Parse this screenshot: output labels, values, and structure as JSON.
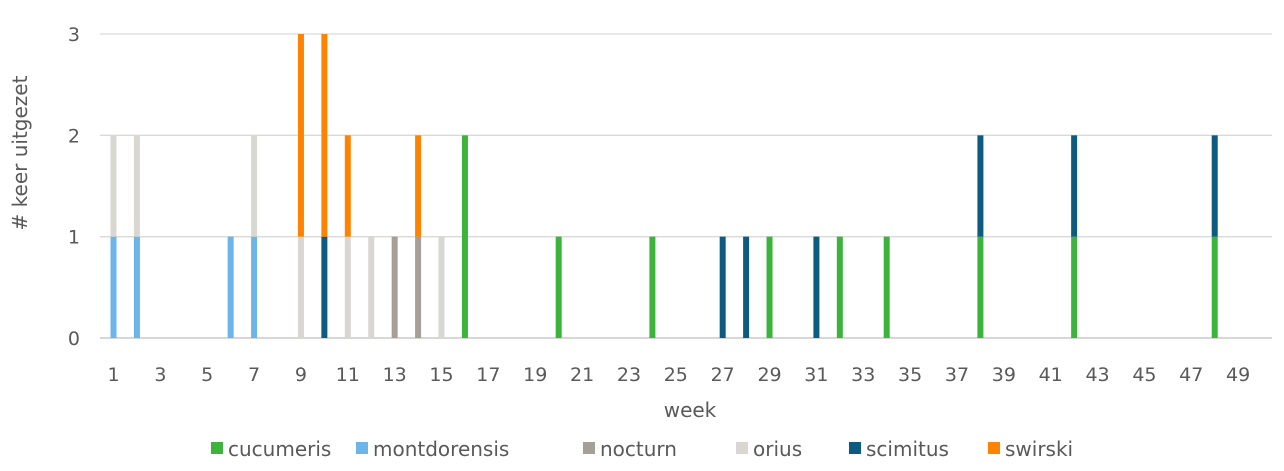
{
  "chart_data": {
    "type": "bar",
    "stacked": true,
    "title": "",
    "xlabel": "week",
    "ylabel": "# keer uitgezet",
    "ylim": [
      0,
      3
    ],
    "yticks": [
      0,
      1,
      2,
      3
    ],
    "grid": true,
    "legend_position": "bottom",
    "xticks": [
      1,
      3,
      5,
      7,
      9,
      11,
      13,
      15,
      17,
      19,
      21,
      23,
      25,
      27,
      29,
      31,
      33,
      35,
      37,
      39,
      41,
      43,
      45,
      47,
      49
    ],
    "x_range": [
      1,
      49
    ],
    "series": [
      {
        "name": "cucumeris",
        "color": "#3cb43c",
        "points": [
          {
            "week": 16,
            "value": 2
          },
          {
            "week": 20,
            "value": 1
          },
          {
            "week": 24,
            "value": 1
          },
          {
            "week": 29,
            "value": 1
          },
          {
            "week": 32,
            "value": 1
          },
          {
            "week": 34,
            "value": 1
          },
          {
            "week": 38,
            "value": 1
          },
          {
            "week": 42,
            "value": 1
          },
          {
            "week": 48,
            "value": 1
          }
        ]
      },
      {
        "name": "montdorensis",
        "color": "#6cb4ea",
        "points": [
          {
            "week": 1,
            "value": 1
          },
          {
            "week": 2,
            "value": 1
          },
          {
            "week": 6,
            "value": 1
          },
          {
            "week": 7,
            "value": 1
          }
        ]
      },
      {
        "name": "nocturn",
        "color": "#a59f98",
        "points": [
          {
            "week": 13,
            "value": 1
          },
          {
            "week": 14,
            "value": 1
          }
        ]
      },
      {
        "name": "orius",
        "color": "#d9d7d2",
        "points": [
          {
            "week": 1,
            "value": 1
          },
          {
            "week": 2,
            "value": 1
          },
          {
            "week": 7,
            "value": 1
          },
          {
            "week": 9,
            "value": 1
          },
          {
            "week": 11,
            "value": 1
          },
          {
            "week": 12,
            "value": 1
          },
          {
            "week": 15,
            "value": 1
          }
        ]
      },
      {
        "name": "scimitus",
        "color": "#0d5b80",
        "points": [
          {
            "week": 10,
            "value": 1
          },
          {
            "week": 27,
            "value": 1
          },
          {
            "week": 28,
            "value": 1
          },
          {
            "week": 31,
            "value": 1
          },
          {
            "week": 38,
            "value": 1
          },
          {
            "week": 42,
            "value": 1
          },
          {
            "week": 48,
            "value": 1
          }
        ]
      },
      {
        "name": "swirski",
        "color": "#ff8200",
        "points": [
          {
            "week": 9,
            "value": 2
          },
          {
            "week": 10,
            "value": 2
          },
          {
            "week": 11,
            "value": 1
          },
          {
            "week": 14,
            "value": 1
          }
        ]
      }
    ]
  }
}
